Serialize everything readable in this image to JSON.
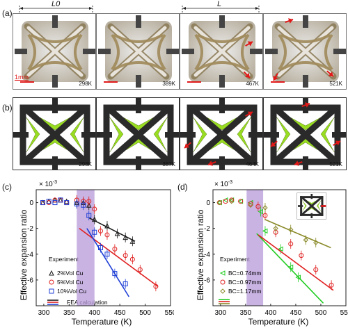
{
  "panel_labels": {
    "a": "(a)",
    "b": "(b)",
    "c": "(c)",
    "d": "(d)"
  },
  "length_labels": {
    "l0": "L0",
    "l": "L"
  },
  "scale_bar": "1mm",
  "photo_temps": [
    "298K",
    "389K",
    "467K",
    "521K"
  ],
  "fea_temps": [
    "298K",
    "387K",
    "464K",
    "521K"
  ],
  "colors": {
    "black": "#1a1a1a",
    "red": "#e02020",
    "blue": "#1f3fd6",
    "green": "#22cc22",
    "olive": "#8a8a2a",
    "band": "#b79ad9",
    "fea_green": "#99dd22",
    "arrow": "#e01818"
  },
  "chart_data": [
    {
      "type": "scatter",
      "panel": "(c)",
      "xlabel": "Temperature (K)",
      "ylabel": "Effective expansion ratio",
      "y_multiplier": "× 10-3",
      "xlim": [
        285,
        550
      ],
      "ylim": [
        -8,
        1
      ],
      "xticks": [
        300,
        350,
        400,
        450,
        500,
        550
      ],
      "yticks": [
        0,
        -2,
        -4,
        -6
      ],
      "band": [
        365,
        400
      ],
      "legend_title": "Experiment",
      "fea_label": "FEA calculation",
      "series": [
        {
          "name": "2%Vol Cu",
          "marker": "triangle",
          "color": "#1a1a1a",
          "x": [
            298,
            310,
            322,
            333,
            345,
            365,
            378,
            389,
            400,
            425,
            445,
            461,
            475
          ],
          "y": [
            0.0,
            0.1,
            0.2,
            0.2,
            0.1,
            0.0,
            0.0,
            -0.2,
            -1.3,
            -1.8,
            -2.4,
            -2.7,
            -3.0
          ],
          "fit": [
            [
              390,
              -1.2
            ],
            [
              480,
              -3.0
            ]
          ]
        },
        {
          "name": "5%Vol Cu",
          "marker": "circle",
          "color": "#e02020",
          "x": [
            298,
            310,
            322,
            333,
            345,
            365,
            378,
            389,
            400,
            412,
            425,
            440,
            461,
            475,
            490,
            521
          ],
          "y": [
            0.0,
            0.0,
            0.2,
            0.2,
            0.0,
            0.2,
            0.1,
            0.1,
            -0.5,
            -2.2,
            -2.5,
            -3.6,
            -4.1,
            -4.4,
            -5.2,
            -6.5
          ],
          "fit": [
            [
              370,
              -2.0
            ],
            [
              525,
              -6.5
            ]
          ]
        },
        {
          "name": "10%Vol Cu",
          "marker": "square",
          "color": "#1f3fd6",
          "x": [
            298,
            310,
            322,
            333,
            345,
            365,
            378,
            389,
            400,
            412,
            425,
            440,
            461
          ],
          "y": [
            0.0,
            0.1,
            0.0,
            0.2,
            0.0,
            -0.1,
            -0.2,
            -1.0,
            -2.3,
            -3.5,
            -4.0,
            -5.5,
            -6.3
          ],
          "fit": [
            [
              385,
              -2.0
            ],
            [
              468,
              -7.3
            ]
          ]
        }
      ]
    },
    {
      "type": "scatter",
      "panel": "(d)",
      "xlabel": "Temperature (K)",
      "ylabel": "Effective expansion ratio",
      "y_multiplier": "× 10-3",
      "xlim": [
        285,
        550
      ],
      "ylim": [
        -8,
        1
      ],
      "xticks": [
        300,
        350,
        400,
        450,
        500,
        550
      ],
      "yticks": [
        0,
        -2,
        -4,
        -6
      ],
      "band": [
        352,
        385
      ],
      "legend_title": "Experiment",
      "series": [
        {
          "name": "BC=0.74mm",
          "marker": "triangle-left",
          "color": "#22cc22",
          "x": [
            298,
            310,
            322,
            340,
            360,
            380,
            389,
            420,
            440,
            455
          ],
          "y": [
            0.0,
            0.2,
            0.2,
            0.1,
            0.0,
            -0.7,
            -2.2,
            -3.6,
            -5.0,
            -5.8
          ],
          "fit": [
            [
              372,
              -2.4
            ],
            [
              505,
              -7.8
            ]
          ]
        },
        {
          "name": "BC=0.97mm",
          "marker": "circle",
          "color": "#e02020",
          "x": [
            298,
            310,
            322,
            340,
            360,
            375,
            389,
            410,
            440,
            461,
            490,
            521
          ],
          "y": [
            0.0,
            0.1,
            0.2,
            0.1,
            -0.1,
            -0.3,
            -1.0,
            -2.3,
            -3.2,
            -4.1,
            -5.2,
            -6.4
          ],
          "fit": [
            [
              375,
              -2.5
            ],
            [
              525,
              -6.8
            ]
          ]
        },
        {
          "name": "BC=1.17mm",
          "marker": "diamond",
          "color": "#8a8a2a",
          "x": [
            298,
            322,
            360,
            389,
            410,
            440,
            470,
            490
          ],
          "y": [
            0.0,
            0.1,
            -0.2,
            -0.4,
            -2.0,
            -2.1,
            -2.9,
            -3.1
          ],
          "fit": [
            [
              388,
              -1.3
            ],
            [
              520,
              -3.5
            ]
          ]
        }
      ]
    }
  ]
}
